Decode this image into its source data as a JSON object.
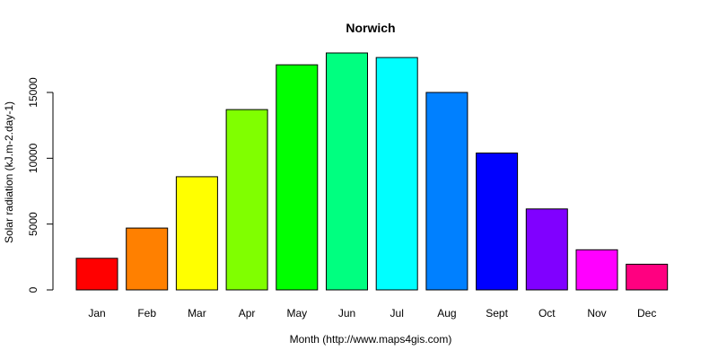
{
  "chart_data": {
    "type": "bar",
    "title": "Norwich",
    "xlabel": "Month (http://www.maps4gis.com)",
    "ylabel": "Solar radiation (kJ.m-2.day-1)",
    "ylim": [
      0,
      18000
    ],
    "yticks": [
      0,
      5000,
      10000,
      15000
    ],
    "grid": false,
    "legend": "none",
    "categories": [
      "Jan",
      "Feb",
      "Mar",
      "Apr",
      "May",
      "Jun",
      "Jul",
      "Aug",
      "Sept",
      "Oct",
      "Nov",
      "Dec"
    ],
    "values": [
      2400,
      4700,
      8600,
      13700,
      17100,
      18000,
      17650,
      15000,
      10400,
      6150,
      3050,
      1950
    ],
    "colors": [
      "#FF0000",
      "#FF8000",
      "#FFFF00",
      "#80FF00",
      "#00FF00",
      "#00FF80",
      "#00FFFF",
      "#0080FF",
      "#0000FF",
      "#8000FF",
      "#FF00FF",
      "#FF0080"
    ]
  }
}
